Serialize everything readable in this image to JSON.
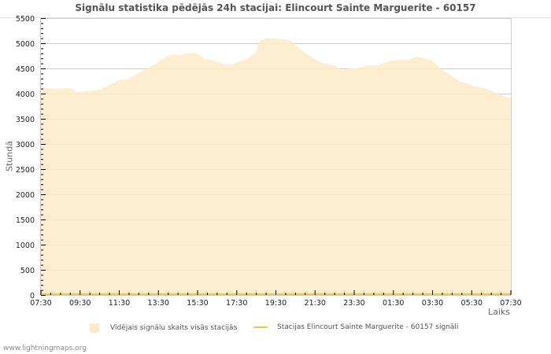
{
  "title": "Signālu statistika pēdējās 24h stacijai: Elincourt Sainte Marguerite - 60157",
  "footer": "www.lightningmaps.org",
  "colors": {
    "area_fill": "#fdebc8",
    "station_line": "#f5c542",
    "grid": "#cccccc",
    "axis": "#cccccc",
    "text": "#555555"
  },
  "chart_data": {
    "type": "area",
    "title": "Signālu statistika pēdējās 24h stacijai: Elincourt Sainte Marguerite - 60157",
    "xlabel": "Laiks",
    "ylabel": "Stundā",
    "ylim": [
      0,
      5500
    ],
    "yticks": [
      0,
      500,
      1000,
      1500,
      2000,
      2500,
      3000,
      3500,
      4000,
      4500,
      5000,
      5500
    ],
    "xtick_labels": [
      "07:30",
      "09:30",
      "11:30",
      "13:30",
      "15:30",
      "17:30",
      "19:30",
      "21:30",
      "23:30",
      "01:30",
      "03:30",
      "05:30",
      "07:30"
    ],
    "grid": true,
    "legend_position": "bottom",
    "x_hours_from_start": [
      0,
      0.32,
      0.93,
      1.53,
      1.81,
      2.33,
      2.94,
      3.54,
      3.94,
      4.34,
      4.95,
      5.55,
      5.95,
      6.35,
      6.76,
      7.04,
      7.36,
      7.96,
      8.36,
      8.96,
      9.37,
      9.77,
      10.17,
      10.57,
      10.97,
      11.18,
      11.58,
      11.98,
      12.38,
      12.78,
      13.18,
      13.59,
      14.19,
      14.59,
      14.99,
      15.39,
      15.79,
      16.19,
      16.6,
      17.2,
      17.8,
      18.4,
      18.8,
      19.2,
      19.61,
      20.01,
      20.41,
      20.81,
      21.41,
      21.81,
      22.41,
      22.82,
      23.22,
      24.0
    ],
    "series": [
      {
        "name": "Vidējais signālu skaits visās stacijās",
        "kind": "area",
        "values": [
          4150,
          4100,
          4100,
          4110,
          4030,
          4050,
          4070,
          4180,
          4260,
          4280,
          4400,
          4530,
          4620,
          4730,
          4780,
          4760,
          4800,
          4810,
          4690,
          4640,
          4580,
          4580,
          4650,
          4700,
          4820,
          5050,
          5100,
          5090,
          5080,
          5050,
          4900,
          4780,
          4640,
          4580,
          4560,
          4470,
          4500,
          4500,
          4560,
          4560,
          4650,
          4670,
          4670,
          4740,
          4700,
          4650,
          4500,
          4390,
          4240,
          4190,
          4120,
          4090,
          4020,
          3900
        ]
      },
      {
        "name": "Stacijas Elincourt Sainte Marguerite - 60157 signāli",
        "kind": "line",
        "values": [
          0,
          0,
          0,
          0,
          0,
          0,
          0,
          0,
          0,
          0,
          0,
          0,
          0,
          0,
          0,
          0,
          0,
          0,
          0,
          0,
          0,
          0,
          0,
          0,
          0,
          0,
          0,
          0,
          0,
          0,
          0,
          0,
          0,
          0,
          0,
          0,
          0,
          0,
          0,
          0,
          0,
          0,
          0,
          0,
          0,
          0,
          0,
          0,
          0,
          0,
          0,
          0,
          0,
          0
        ]
      }
    ]
  },
  "legend": {
    "area_label": "Vidējais signālu skaits visās stacijās",
    "line_label": "Stacijas Elincourt Sainte Marguerite - 60157 signāli"
  }
}
